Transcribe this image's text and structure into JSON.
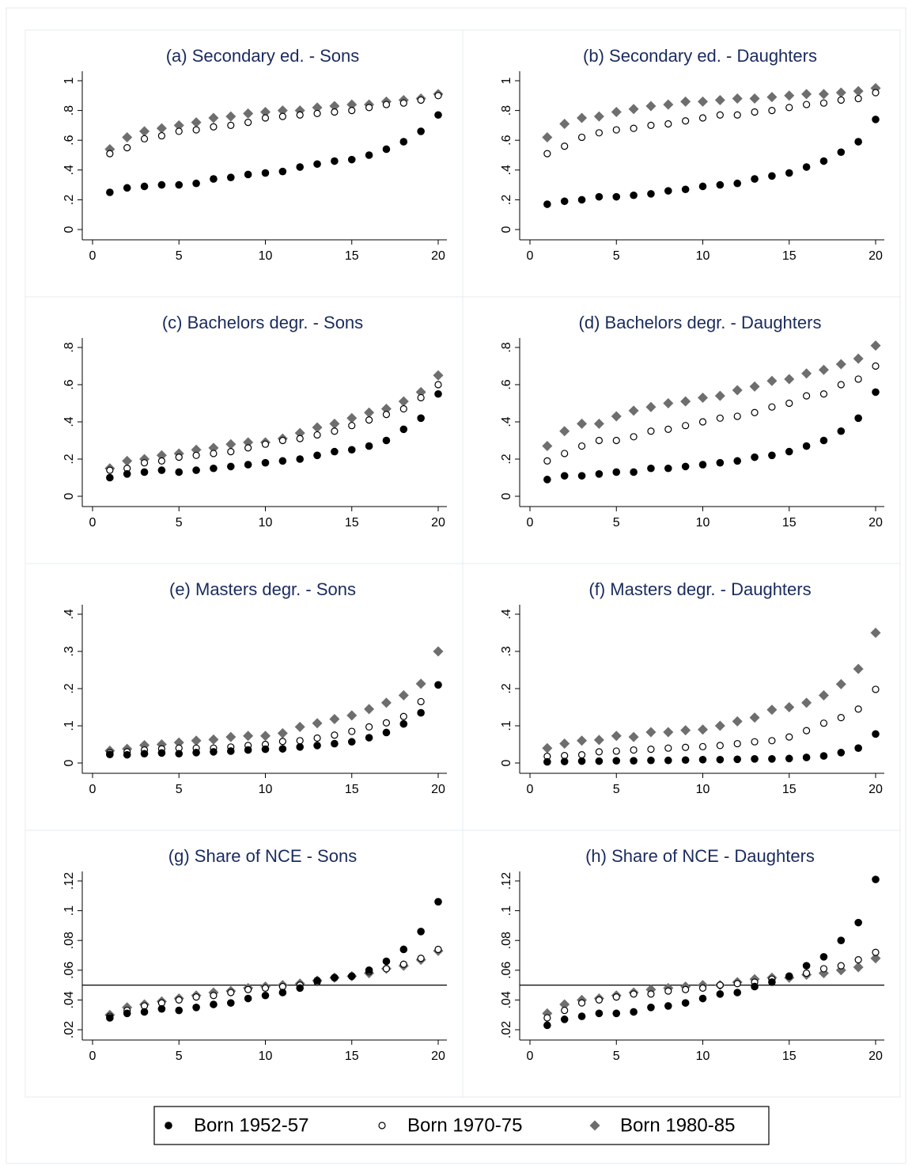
{
  "chart_data": [
    {
      "type": "scatter",
      "title": "(a) Secondary ed. - Sons",
      "x": [
        1,
        2,
        3,
        4,
        5,
        6,
        7,
        8,
        9,
        10,
        11,
        12,
        13,
        14,
        15,
        16,
        17,
        18,
        19,
        20
      ],
      "xlim": [
        0,
        20
      ],
      "xticks": [
        0,
        5,
        10,
        15,
        20
      ],
      "ylim": [
        0,
        1
      ],
      "yticks": [
        0,
        {
          "value": 0.2,
          "label": ".2"
        },
        {
          "value": 0.4,
          "label": ".4"
        },
        {
          "value": 0.6,
          "label": ".6"
        },
        {
          "value": 0.8,
          "label": ".8"
        },
        1
      ],
      "series": [
        {
          "name": "Born 1952-57",
          "color": "#000000",
          "marker": "circle",
          "values": [
            0.25,
            0.28,
            0.29,
            0.3,
            0.3,
            0.31,
            0.34,
            0.35,
            0.37,
            0.38,
            0.39,
            0.42,
            0.44,
            0.46,
            0.47,
            0.5,
            0.54,
            0.59,
            0.66,
            0.77
          ]
        },
        {
          "name": "Born 1970-75",
          "color": "#000000",
          "marker": "hollow-circle",
          "values": [
            0.51,
            0.55,
            0.61,
            0.63,
            0.66,
            0.67,
            0.69,
            0.7,
            0.72,
            0.75,
            0.76,
            0.77,
            0.78,
            0.79,
            0.8,
            0.82,
            0.84,
            0.85,
            0.87,
            0.9
          ]
        },
        {
          "name": "Born 1980-85",
          "color": "#6e6e6e",
          "marker": "diamond",
          "values": [
            0.54,
            0.62,
            0.66,
            0.68,
            0.7,
            0.72,
            0.75,
            0.76,
            0.78,
            0.79,
            0.8,
            0.8,
            0.82,
            0.83,
            0.84,
            0.84,
            0.86,
            0.87,
            0.88,
            0.91
          ]
        }
      ]
    },
    {
      "type": "scatter",
      "title": "(b) Secondary ed. - Daughters",
      "x": [
        1,
        2,
        3,
        4,
        5,
        6,
        7,
        8,
        9,
        10,
        11,
        12,
        13,
        14,
        15,
        16,
        17,
        18,
        19,
        20
      ],
      "xlim": [
        0,
        20
      ],
      "xticks": [
        0,
        5,
        10,
        15,
        20
      ],
      "ylim": [
        0,
        1
      ],
      "yticks": [
        0,
        {
          "value": 0.2,
          "label": ".2"
        },
        {
          "value": 0.4,
          "label": ".4"
        },
        {
          "value": 0.6,
          "label": ".6"
        },
        {
          "value": 0.8,
          "label": ".8"
        },
        1
      ],
      "series": [
        {
          "name": "Born 1952-57",
          "color": "#000000",
          "marker": "circle",
          "values": [
            0.17,
            0.19,
            0.2,
            0.22,
            0.22,
            0.23,
            0.24,
            0.26,
            0.27,
            0.29,
            0.3,
            0.31,
            0.34,
            0.36,
            0.38,
            0.42,
            0.46,
            0.52,
            0.59,
            0.74
          ]
        },
        {
          "name": "Born 1970-75",
          "color": "#000000",
          "marker": "hollow-circle",
          "values": [
            0.51,
            0.56,
            0.62,
            0.65,
            0.67,
            0.68,
            0.7,
            0.71,
            0.73,
            0.75,
            0.77,
            0.77,
            0.79,
            0.8,
            0.82,
            0.84,
            0.85,
            0.87,
            0.88,
            0.92
          ]
        },
        {
          "name": "Born 1980-85",
          "color": "#6e6e6e",
          "marker": "diamond",
          "values": [
            0.62,
            0.71,
            0.75,
            0.76,
            0.79,
            0.81,
            0.83,
            0.84,
            0.86,
            0.86,
            0.87,
            0.88,
            0.88,
            0.89,
            0.9,
            0.91,
            0.91,
            0.92,
            0.93,
            0.95
          ]
        }
      ]
    },
    {
      "type": "scatter",
      "title": "(c) Bachelors degr. - Sons",
      "x": [
        1,
        2,
        3,
        4,
        5,
        6,
        7,
        8,
        9,
        10,
        11,
        12,
        13,
        14,
        15,
        16,
        17,
        18,
        19,
        20
      ],
      "xlim": [
        0,
        20
      ],
      "xticks": [
        0,
        5,
        10,
        15,
        20
      ],
      "ylim": [
        0,
        0.8
      ],
      "yticks": [
        0,
        {
          "value": 0.2,
          "label": ".2"
        },
        {
          "value": 0.4,
          "label": ".4"
        },
        {
          "value": 0.6,
          "label": ".6"
        },
        {
          "value": 0.8,
          "label": ".8"
        }
      ],
      "series": [
        {
          "name": "Born 1952-57",
          "color": "#000000",
          "marker": "circle",
          "values": [
            0.1,
            0.12,
            0.13,
            0.14,
            0.13,
            0.14,
            0.15,
            0.16,
            0.17,
            0.18,
            0.19,
            0.2,
            0.22,
            0.24,
            0.25,
            0.27,
            0.3,
            0.36,
            0.42,
            0.55
          ]
        },
        {
          "name": "Born 1970-75",
          "color": "#000000",
          "marker": "hollow-circle",
          "values": [
            0.14,
            0.15,
            0.18,
            0.19,
            0.21,
            0.22,
            0.23,
            0.24,
            0.26,
            0.28,
            0.3,
            0.31,
            0.33,
            0.35,
            0.38,
            0.41,
            0.44,
            0.47,
            0.53,
            0.6
          ]
        },
        {
          "name": "Born 1980-85",
          "color": "#6e6e6e",
          "marker": "diamond",
          "values": [
            0.15,
            0.19,
            0.2,
            0.22,
            0.23,
            0.25,
            0.26,
            0.28,
            0.29,
            0.29,
            0.31,
            0.34,
            0.37,
            0.39,
            0.42,
            0.45,
            0.47,
            0.51,
            0.56,
            0.65
          ]
        }
      ]
    },
    {
      "type": "scatter",
      "title": "(d) Bachelors degr. - Daughters",
      "x": [
        1,
        2,
        3,
        4,
        5,
        6,
        7,
        8,
        9,
        10,
        11,
        12,
        13,
        14,
        15,
        16,
        17,
        18,
        19,
        20
      ],
      "xlim": [
        0,
        20
      ],
      "xticks": [
        0,
        5,
        10,
        15,
        20
      ],
      "ylim": [
        0,
        0.8
      ],
      "yticks": [
        0,
        {
          "value": 0.2,
          "label": ".2"
        },
        {
          "value": 0.4,
          "label": ".4"
        },
        {
          "value": 0.6,
          "label": ".6"
        },
        {
          "value": 0.8,
          "label": ".8"
        }
      ],
      "series": [
        {
          "name": "Born 1952-57",
          "color": "#000000",
          "marker": "circle",
          "values": [
            0.09,
            0.11,
            0.11,
            0.12,
            0.13,
            0.13,
            0.15,
            0.15,
            0.16,
            0.17,
            0.18,
            0.19,
            0.21,
            0.22,
            0.24,
            0.27,
            0.3,
            0.35,
            0.42,
            0.56
          ]
        },
        {
          "name": "Born 1970-75",
          "color": "#000000",
          "marker": "hollow-circle",
          "values": [
            0.19,
            0.23,
            0.27,
            0.3,
            0.3,
            0.32,
            0.35,
            0.36,
            0.38,
            0.4,
            0.42,
            0.43,
            0.45,
            0.48,
            0.5,
            0.54,
            0.55,
            0.6,
            0.63,
            0.7
          ]
        },
        {
          "name": "Born 1980-85",
          "color": "#6e6e6e",
          "marker": "diamond",
          "values": [
            0.27,
            0.35,
            0.39,
            0.39,
            0.43,
            0.46,
            0.48,
            0.5,
            0.51,
            0.53,
            0.54,
            0.57,
            0.59,
            0.62,
            0.63,
            0.66,
            0.68,
            0.71,
            0.74,
            0.81
          ]
        }
      ]
    },
    {
      "type": "scatter",
      "title": "(e) Masters degr. - Sons",
      "x": [
        1,
        2,
        3,
        4,
        5,
        6,
        7,
        8,
        9,
        10,
        11,
        12,
        13,
        14,
        15,
        16,
        17,
        18,
        19,
        20
      ],
      "xlim": [
        0,
        20
      ],
      "xticks": [
        0,
        5,
        10,
        15,
        20
      ],
      "ylim": [
        0,
        0.4
      ],
      "yticks": [
        0,
        {
          "value": 0.1,
          "label": ".1"
        },
        {
          "value": 0.2,
          "label": ".2"
        },
        {
          "value": 0.3,
          "label": ".3"
        },
        {
          "value": 0.4,
          "label": ".4"
        }
      ],
      "series": [
        {
          "name": "Born 1952-57",
          "color": "#000000",
          "marker": "circle",
          "values": [
            0.023,
            0.022,
            0.025,
            0.027,
            0.025,
            0.028,
            0.03,
            0.032,
            0.035,
            0.037,
            0.038,
            0.043,
            0.047,
            0.052,
            0.057,
            0.068,
            0.082,
            0.105,
            0.135,
            0.21
          ]
        },
        {
          "name": "Born 1970-75",
          "color": "#000000",
          "marker": "hollow-circle",
          "values": [
            0.028,
            0.03,
            0.035,
            0.038,
            0.04,
            0.04,
            0.04,
            0.043,
            0.047,
            0.05,
            0.058,
            0.06,
            0.067,
            0.075,
            0.085,
            0.097,
            0.108,
            0.125,
            0.165,
            0.21
          ]
        },
        {
          "name": "Born 1980-85",
          "color": "#6e6e6e",
          "marker": "diamond",
          "values": [
            0.033,
            0.038,
            0.048,
            0.05,
            0.055,
            0.06,
            0.063,
            0.07,
            0.073,
            0.073,
            0.08,
            0.097,
            0.107,
            0.118,
            0.128,
            0.145,
            0.162,
            0.182,
            0.213,
            0.3
          ]
        }
      ]
    },
    {
      "type": "scatter",
      "title": "(f) Masters degr. - Daughters",
      "x": [
        1,
        2,
        3,
        4,
        5,
        6,
        7,
        8,
        9,
        10,
        11,
        12,
        13,
        14,
        15,
        16,
        17,
        18,
        19,
        20
      ],
      "xlim": [
        0,
        20
      ],
      "xticks": [
        0,
        5,
        10,
        15,
        20
      ],
      "ylim": [
        0,
        0.4
      ],
      "yticks": [
        0,
        {
          "value": 0.1,
          "label": ".1"
        },
        {
          "value": 0.2,
          "label": ".2"
        },
        {
          "value": 0.3,
          "label": ".3"
        },
        {
          "value": 0.4,
          "label": ".4"
        }
      ],
      "series": [
        {
          "name": "Born 1952-57",
          "color": "#000000",
          "marker": "circle",
          "values": [
            0.003,
            0.004,
            0.005,
            0.005,
            0.006,
            0.006,
            0.007,
            0.007,
            0.008,
            0.009,
            0.009,
            0.01,
            0.011,
            0.011,
            0.012,
            0.015,
            0.019,
            0.028,
            0.04,
            0.078
          ]
        },
        {
          "name": "Born 1970-75",
          "color": "#000000",
          "marker": "hollow-circle",
          "values": [
            0.018,
            0.02,
            0.022,
            0.03,
            0.032,
            0.035,
            0.037,
            0.04,
            0.042,
            0.044,
            0.047,
            0.052,
            0.057,
            0.06,
            0.07,
            0.087,
            0.107,
            0.122,
            0.145,
            0.198
          ]
        },
        {
          "name": "Born 1980-85",
          "color": "#6e6e6e",
          "marker": "diamond",
          "values": [
            0.04,
            0.052,
            0.06,
            0.062,
            0.073,
            0.07,
            0.083,
            0.083,
            0.088,
            0.09,
            0.1,
            0.112,
            0.122,
            0.143,
            0.15,
            0.162,
            0.182,
            0.212,
            0.253,
            0.35
          ]
        }
      ]
    },
    {
      "type": "scatter",
      "title": "(g) Share of NCE - Sons",
      "x": [
        1,
        2,
        3,
        4,
        5,
        6,
        7,
        8,
        9,
        10,
        11,
        12,
        13,
        14,
        15,
        16,
        17,
        18,
        19,
        20
      ],
      "xlim": [
        0,
        20
      ],
      "xticks": [
        0,
        5,
        10,
        15,
        20
      ],
      "ylim": [
        0.02,
        0.12
      ],
      "yticks": [
        {
          "value": 0.02,
          "label": ".02"
        },
        {
          "value": 0.04,
          "label": ".04"
        },
        {
          "value": 0.06,
          "label": ".06"
        },
        {
          "value": 0.08,
          "label": ".08"
        },
        {
          "value": 0.1,
          "label": ".1"
        },
        {
          "value": 0.12,
          "label": ".12"
        }
      ],
      "hline": 0.05,
      "series": [
        {
          "name": "Born 1952-57",
          "color": "#000000",
          "marker": "circle",
          "values": [
            0.028,
            0.031,
            0.032,
            0.034,
            0.033,
            0.035,
            0.037,
            0.038,
            0.041,
            0.043,
            0.045,
            0.048,
            0.053,
            0.055,
            0.056,
            0.06,
            0.066,
            0.074,
            0.086,
            0.106
          ]
        },
        {
          "name": "Born 1970-75",
          "color": "#000000",
          "marker": "hollow-circle",
          "values": [
            0.029,
            0.033,
            0.036,
            0.038,
            0.04,
            0.042,
            0.043,
            0.045,
            0.047,
            0.048,
            0.049,
            0.05,
            0.052,
            0.055,
            0.056,
            0.059,
            0.061,
            0.064,
            0.068,
            0.074
          ]
        },
        {
          "name": "Born 1980-85",
          "color": "#6e6e6e",
          "marker": "diamond",
          "values": [
            0.03,
            0.035,
            0.037,
            0.039,
            0.041,
            0.043,
            0.045,
            0.046,
            0.048,
            0.049,
            0.05,
            0.051,
            0.053,
            0.055,
            0.056,
            0.058,
            0.061,
            0.063,
            0.067,
            0.073
          ]
        }
      ]
    },
    {
      "type": "scatter",
      "title": "(h) Share of NCE - Daughters",
      "x": [
        1,
        2,
        3,
        4,
        5,
        6,
        7,
        8,
        9,
        10,
        11,
        12,
        13,
        14,
        15,
        16,
        17,
        18,
        19,
        20
      ],
      "xlim": [
        0,
        20
      ],
      "xticks": [
        0,
        5,
        10,
        15,
        20
      ],
      "ylim": [
        0.02,
        0.12
      ],
      "yticks": [
        {
          "value": 0.02,
          "label": ".02"
        },
        {
          "value": 0.04,
          "label": ".04"
        },
        {
          "value": 0.06,
          "label": ".06"
        },
        {
          "value": 0.08,
          "label": ".08"
        },
        {
          "value": 0.1,
          "label": ".1"
        },
        {
          "value": 0.12,
          "label": ".12"
        }
      ],
      "hline": 0.05,
      "series": [
        {
          "name": "Born 1952-57",
          "color": "#000000",
          "marker": "circle",
          "values": [
            0.023,
            0.027,
            0.029,
            0.031,
            0.031,
            0.032,
            0.035,
            0.036,
            0.038,
            0.041,
            0.044,
            0.045,
            0.049,
            0.052,
            0.056,
            0.063,
            0.069,
            0.08,
            0.092,
            0.121
          ]
        },
        {
          "name": "Born 1970-75",
          "color": "#000000",
          "marker": "hollow-circle",
          "values": [
            0.028,
            0.033,
            0.038,
            0.04,
            0.042,
            0.044,
            0.044,
            0.046,
            0.047,
            0.048,
            0.05,
            0.051,
            0.052,
            0.054,
            0.056,
            0.058,
            0.061,
            0.063,
            0.067,
            0.072
          ]
        },
        {
          "name": "Born 1980-85",
          "color": "#6e6e6e",
          "marker": "diamond",
          "values": [
            0.031,
            0.037,
            0.04,
            0.041,
            0.043,
            0.045,
            0.047,
            0.048,
            0.049,
            0.05,
            0.05,
            0.052,
            0.054,
            0.055,
            0.055,
            0.057,
            0.058,
            0.06,
            0.062,
            0.068
          ]
        }
      ]
    }
  ]
}
